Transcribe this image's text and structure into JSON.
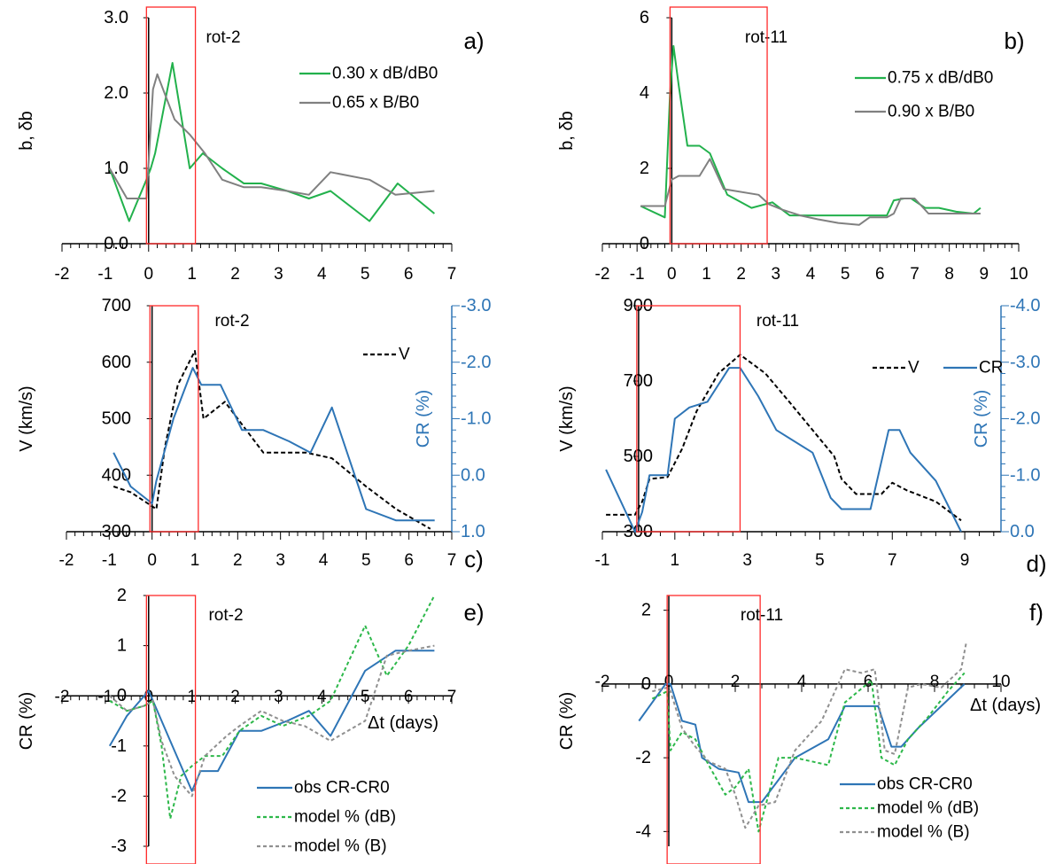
{
  "colors": {
    "green": "#22b14c",
    "gray": "#808080",
    "blue": "#2e75b6",
    "black": "#000000",
    "red": "#ff2a2a",
    "model_green": "#2db84a",
    "model_gray": "#909090"
  },
  "chart_data": [
    {
      "id": "a",
      "type": "line",
      "panel_label": "a)",
      "title": "rot-2",
      "ylabel": "b, δb",
      "xlabel": "",
      "xlim": [
        -2,
        7
      ],
      "ylim": [
        0,
        3
      ],
      "xticks": [
        -2,
        -1,
        0,
        1,
        2,
        3,
        4,
        5,
        6,
        7
      ],
      "yticks": [
        {
          "v": 0,
          "label": "0.0"
        },
        {
          "v": 1,
          "label": "1.0"
        },
        {
          "v": 2,
          "label": "2.0"
        },
        {
          "v": 3,
          "label": "3.0"
        }
      ],
      "highlight_xrange": [
        -0.05,
        1.08
      ],
      "series": [
        {
          "name": "0.30 x dB/dB0",
          "color": "green",
          "dash": "none",
          "x": [
            -0.9,
            -0.45,
            -0.05,
            0.05,
            0.15,
            0.55,
            0.95,
            1.25,
            1.7,
            2.2,
            2.6,
            3.2,
            3.7,
            4.2,
            5.1,
            5.75,
            6.6
          ],
          "y": [
            1.0,
            0.3,
            0.85,
            1.0,
            1.2,
            2.4,
            1.0,
            1.2,
            1.0,
            0.8,
            0.8,
            0.7,
            0.6,
            0.7,
            0.3,
            0.8,
            0.4
          ]
        },
        {
          "name": "0.65 x B/B0",
          "color": "gray",
          "dash": "none",
          "x": [
            -0.9,
            -0.5,
            -0.05,
            0.1,
            0.2,
            0.6,
            0.95,
            1.3,
            1.7,
            2.2,
            2.6,
            3.2,
            3.7,
            4.2,
            5.1,
            5.7,
            6.6
          ],
          "y": [
            1.0,
            0.6,
            0.6,
            2.05,
            2.25,
            1.65,
            1.45,
            1.2,
            0.85,
            0.75,
            0.75,
            0.7,
            0.65,
            0.95,
            0.85,
            0.65,
            0.7
          ]
        }
      ]
    },
    {
      "id": "b",
      "type": "line",
      "panel_label": "b)",
      "title": "rot-11",
      "ylabel": "b, δb",
      "xlabel": "",
      "xlim": [
        -2,
        10
      ],
      "ylim": [
        0,
        6
      ],
      "xticks": [
        -2,
        -1,
        0,
        1,
        2,
        3,
        4,
        5,
        6,
        7,
        8,
        9,
        10
      ],
      "yticks": [
        {
          "v": 0,
          "label": "0"
        },
        {
          "v": 2,
          "label": "2"
        },
        {
          "v": 4,
          "label": "4"
        },
        {
          "v": 6,
          "label": "6"
        }
      ],
      "highlight_xrange": [
        -0.05,
        2.75
      ],
      "series": [
        {
          "name": "0.75 x dB/dB0",
          "color": "green",
          "dash": "none",
          "x": [
            -0.9,
            -0.2,
            -0.05,
            0.05,
            0.2,
            0.45,
            0.8,
            1.1,
            1.6,
            2.3,
            2.9,
            3.4,
            3.9,
            4.5,
            5.2,
            6.2,
            6.4,
            6.7,
            6.9,
            7.3,
            7.7,
            8.2,
            8.7,
            8.9
          ],
          "y": [
            1.0,
            0.7,
            4.0,
            5.25,
            4.2,
            2.6,
            2.6,
            2.4,
            1.3,
            0.95,
            1.1,
            0.75,
            0.75,
            0.75,
            0.75,
            0.75,
            1.15,
            1.2,
            1.2,
            0.95,
            0.95,
            0.85,
            0.8,
            0.95
          ]
        },
        {
          "name": "0.90 x B/B0",
          "color": "gray",
          "dash": "none",
          "x": [
            -0.9,
            -0.2,
            0.0,
            0.2,
            0.8,
            1.1,
            1.5,
            2.5,
            2.8,
            3.2,
            3.7,
            4.2,
            4.8,
            5.4,
            5.7,
            6.2,
            6.4,
            6.6,
            7.0,
            7.4,
            7.8,
            8.9
          ],
          "y": [
            1.0,
            1.0,
            1.7,
            1.8,
            1.8,
            2.25,
            1.45,
            1.3,
            1.05,
            0.9,
            0.75,
            0.65,
            0.55,
            0.5,
            0.7,
            0.7,
            0.8,
            1.2,
            1.2,
            0.8,
            0.8,
            0.8
          ]
        }
      ]
    },
    {
      "id": "c",
      "type": "line",
      "panel_label": "c)",
      "title": "rot-2",
      "ylabel": "V (km/s)",
      "ylabel2": "CR (%)",
      "xlabel": "",
      "xlim": [
        -2,
        7
      ],
      "ylim": [
        300,
        700
      ],
      "y2lim": [
        1.0,
        -3.0
      ],
      "xticks": [
        -2,
        -1,
        0,
        1,
        2,
        3,
        4,
        5,
        6,
        7
      ],
      "yticks": [
        {
          "v": 300,
          "label": "300"
        },
        {
          "v": 400,
          "label": "400"
        },
        {
          "v": 500,
          "label": "500"
        },
        {
          "v": 600,
          "label": "600"
        },
        {
          "v": 700,
          "label": "700"
        }
      ],
      "y2ticks": [
        {
          "v": 1.0,
          "label": "1.0"
        },
        {
          "v": 0.0,
          "label": "0.0"
        },
        {
          "v": -1.0,
          "label": "-1.0"
        },
        {
          "v": -2.0,
          "label": "-2.0"
        },
        {
          "v": -3.0,
          "label": "-3.0"
        }
      ],
      "highlight_xrange": [
        -0.05,
        1.08
      ],
      "series": [
        {
          "name": "V",
          "color": "black",
          "dash": "5,3",
          "axis": "left",
          "legend": true,
          "x": [
            -0.9,
            -0.5,
            -0.1,
            0.1,
            0.3,
            0.6,
            0.8,
            1.0,
            1.2,
            1.7,
            2.0,
            2.6,
            3.6,
            4.2,
            5.0,
            5.7,
            6.5
          ],
          "y": [
            380,
            370,
            350,
            340,
            450,
            560,
            590,
            620,
            500,
            530,
            500,
            440,
            440,
            430,
            380,
            340,
            305
          ]
        },
        {
          "name": "CR",
          "color": "blue",
          "dash": "none",
          "axis": "right",
          "legend": false,
          "x": [
            -0.9,
            -0.5,
            0.0,
            0.1,
            0.5,
            0.95,
            1.15,
            1.6,
            2.1,
            2.6,
            3.2,
            3.7,
            4.2,
            5.0,
            5.7,
            6.6
          ],
          "y": [
            -0.4,
            0.2,
            0.5,
            0.1,
            -1.0,
            -1.9,
            -1.6,
            -1.6,
            -0.8,
            -0.8,
            -0.6,
            -0.4,
            -1.2,
            0.6,
            0.8,
            0.8
          ]
        }
      ]
    },
    {
      "id": "d",
      "type": "line",
      "panel_label": "d)",
      "title": "rot-11",
      "ylabel": "V (km/s)",
      "ylabel2": "CR (%)",
      "xlabel": "",
      "xlim": [
        -1,
        10
      ],
      "ylim": [
        300,
        900
      ],
      "y2lim": [
        0.0,
        -4.0
      ],
      "xticks": [
        -1,
        1,
        3,
        5,
        7,
        9
      ],
      "yticks": [
        {
          "v": 300,
          "label": "300"
        },
        {
          "v": 500,
          "label": "500"
        },
        {
          "v": 700,
          "label": "700"
        },
        {
          "v": 900,
          "label": "900"
        }
      ],
      "y2ticks": [
        {
          "v": 0.0,
          "label": "0.0"
        },
        {
          "v": -1.0,
          "label": "-1.0"
        },
        {
          "v": -2.0,
          "label": "-2.0"
        },
        {
          "v": -3.0,
          "label": "-3.0"
        },
        {
          "v": -4.0,
          "label": "-4.0"
        }
      ],
      "highlight_xrange": [
        -0.05,
        2.8
      ],
      "series": [
        {
          "name": "V",
          "color": "black",
          "dash": "5,3",
          "axis": "left",
          "legend": true,
          "x": [
            -0.9,
            -0.1,
            0.1,
            0.3,
            0.8,
            1.2,
            1.6,
            2.2,
            2.8,
            3.5,
            4.2,
            4.8,
            5.4,
            5.6,
            6.0,
            6.7,
            7.0,
            7.4,
            8.2,
            8.9
          ],
          "y": [
            345,
            345,
            380,
            440,
            445,
            520,
            620,
            720,
            770,
            720,
            640,
            570,
            500,
            440,
            400,
            400,
            430,
            410,
            380,
            330
          ]
        },
        {
          "name": "CR",
          "color": "blue",
          "dash": "none",
          "axis": "right",
          "legend": true,
          "x": [
            -0.9,
            -0.1,
            0.1,
            0.3,
            0.8,
            1.0,
            1.4,
            1.9,
            2.5,
            2.8,
            3.3,
            3.8,
            4.8,
            5.3,
            5.6,
            6.0,
            6.4,
            6.9,
            7.2,
            7.5,
            8.2,
            8.9
          ],
          "y": [
            -1.1,
            0.0,
            -0.35,
            -1.0,
            -1.0,
            -2.0,
            -2.2,
            -2.3,
            -2.9,
            -2.9,
            -2.4,
            -1.8,
            -1.4,
            -0.6,
            -0.4,
            -0.4,
            -0.4,
            -1.8,
            -1.8,
            -1.4,
            -0.9,
            0.0
          ]
        }
      ]
    },
    {
      "id": "e",
      "type": "line",
      "panel_label": "e)",
      "title": "rot-2",
      "ylabel": "CR (%)",
      "xlabel": "Δt (days)",
      "xlim": [
        -2,
        7
      ],
      "ylim": [
        -3,
        2
      ],
      "xaxis_at": 0,
      "xticks": [
        -2,
        -1,
        0,
        1,
        2,
        3,
        4,
        5,
        6,
        7
      ],
      "yticks": [
        {
          "v": -3,
          "label": "-3"
        },
        {
          "v": -2,
          "label": "-2"
        },
        {
          "v": -1,
          "label": "-1"
        },
        {
          "v": 0,
          "label": "0"
        },
        {
          "v": 1,
          "label": "1"
        },
        {
          "v": 2,
          "label": "2"
        }
      ],
      "highlight_xrange": [
        -0.05,
        1.08
      ],
      "series": [
        {
          "name": "obs  CR-CR0",
          "color": "blue",
          "dash": "none",
          "x": [
            -0.9,
            -0.5,
            0.0,
            0.5,
            1.0,
            1.2,
            1.6,
            2.1,
            2.6,
            3.2,
            3.7,
            4.2,
            5.0,
            5.7,
            6.6
          ],
          "y": [
            -1.0,
            -0.4,
            0.1,
            -0.9,
            -1.9,
            -1.5,
            -1.5,
            -0.7,
            -0.7,
            -0.5,
            -0.3,
            -0.8,
            0.5,
            0.9,
            0.9
          ]
        },
        {
          "name": "model % (dB)",
          "color": "model_green",
          "dash": "4,3",
          "x": [
            -0.9,
            -0.5,
            -0.1,
            0.1,
            0.3,
            0.5,
            0.75,
            1.0,
            1.3,
            1.7,
            2.1,
            2.6,
            3.1,
            3.7,
            4.2,
            5.0,
            5.5,
            6.0,
            6.6
          ],
          "y": [
            -0.1,
            -0.3,
            -0.2,
            -0.1,
            -1.0,
            -2.45,
            -1.6,
            -1.4,
            -1.2,
            -1.2,
            -0.7,
            -0.4,
            -0.6,
            -0.4,
            -0.1,
            1.4,
            0.4,
            1.0,
            2.0
          ]
        },
        {
          "name": "model % (B)",
          "color": "model_gray",
          "dash": "4,3",
          "x": [
            -0.9,
            -0.5,
            -0.1,
            0.1,
            0.3,
            0.6,
            1.0,
            1.3,
            1.8,
            2.1,
            2.6,
            3.1,
            3.6,
            4.2,
            5.0,
            5.5,
            6.0,
            6.6
          ],
          "y": [
            0.0,
            -0.3,
            -0.2,
            -0.1,
            -0.9,
            -1.6,
            -2.0,
            -1.2,
            -0.8,
            -0.6,
            -0.3,
            -0.5,
            -0.6,
            -0.9,
            -0.5,
            0.8,
            0.9,
            1.0
          ]
        }
      ]
    },
    {
      "id": "f",
      "type": "line",
      "panel_label": "f)",
      "title": "rot-11",
      "ylabel": "CR (%)",
      "xlabel": "Δt  (days)",
      "xlim": [
        -2,
        10
      ],
      "ylim": [
        -4.4,
        2.4
      ],
      "xaxis_at": 0,
      "xticks": [
        -2,
        0,
        2,
        4,
        6,
        8,
        10
      ],
      "yticks": [
        {
          "v": -4,
          "label": "-4"
        },
        {
          "v": -2,
          "label": "-2"
        },
        {
          "v": 0,
          "label": "0"
        },
        {
          "v": 2,
          "label": "2"
        }
      ],
      "highlight_xrange": [
        -0.05,
        2.75
      ],
      "series": [
        {
          "name": "obs  CR-CR0",
          "color": "blue",
          "dash": "none",
          "x": [
            -0.9,
            -0.1,
            0.05,
            0.4,
            0.8,
            1.0,
            1.5,
            2.1,
            2.4,
            2.8,
            3.3,
            3.8,
            4.8,
            5.3,
            5.9,
            6.3,
            6.7,
            7.0,
            7.5,
            8.2,
            8.9
          ],
          "y": [
            -1.0,
            0.0,
            0.0,
            -1.0,
            -1.1,
            -2.0,
            -2.3,
            -2.4,
            -3.2,
            -3.2,
            -2.6,
            -2.0,
            -1.5,
            -0.6,
            -0.6,
            -0.6,
            -1.7,
            -1.7,
            -1.2,
            -0.6,
            0.0
          ]
        },
        {
          "name": "model % (dB)",
          "color": "model_green",
          "dash": "4,3",
          "x": [
            -0.5,
            -0.05,
            0.05,
            0.4,
            0.8,
            1.2,
            1.7,
            2.0,
            2.4,
            2.7,
            3.3,
            3.8,
            4.8,
            5.3,
            5.7,
            6.1,
            6.4,
            6.8,
            7.2,
            7.8,
            8.4,
            8.9
          ],
          "y": [
            -0.4,
            -0.2,
            -1.8,
            -1.3,
            -1.5,
            -2.2,
            -3.0,
            -2.8,
            -2.3,
            -4.0,
            -2.0,
            -2.0,
            -2.2,
            -0.5,
            -0.2,
            0.1,
            -2.0,
            -2.2,
            -1.5,
            -0.9,
            -0.2,
            0.3
          ]
        },
        {
          "name": "model % (B)",
          "color": "model_gray",
          "dash": "4,3",
          "x": [
            -0.5,
            -0.05,
            0.05,
            0.4,
            0.8,
            1.2,
            1.7,
            2.0,
            2.3,
            2.7,
            3.2,
            3.8,
            4.6,
            5.3,
            5.8,
            6.2,
            6.5,
            6.8,
            7.2,
            7.6,
            8.2,
            8.8,
            8.95
          ],
          "y": [
            -0.2,
            -0.1,
            -0.2,
            -1.2,
            -1.7,
            -2.1,
            -2.3,
            -3.0,
            -3.9,
            -3.3,
            -3.2,
            -1.8,
            -1.0,
            0.4,
            0.3,
            0.4,
            -1.8,
            -1.9,
            -0.1,
            0.0,
            -0.1,
            0.4,
            1.1
          ]
        }
      ]
    }
  ]
}
